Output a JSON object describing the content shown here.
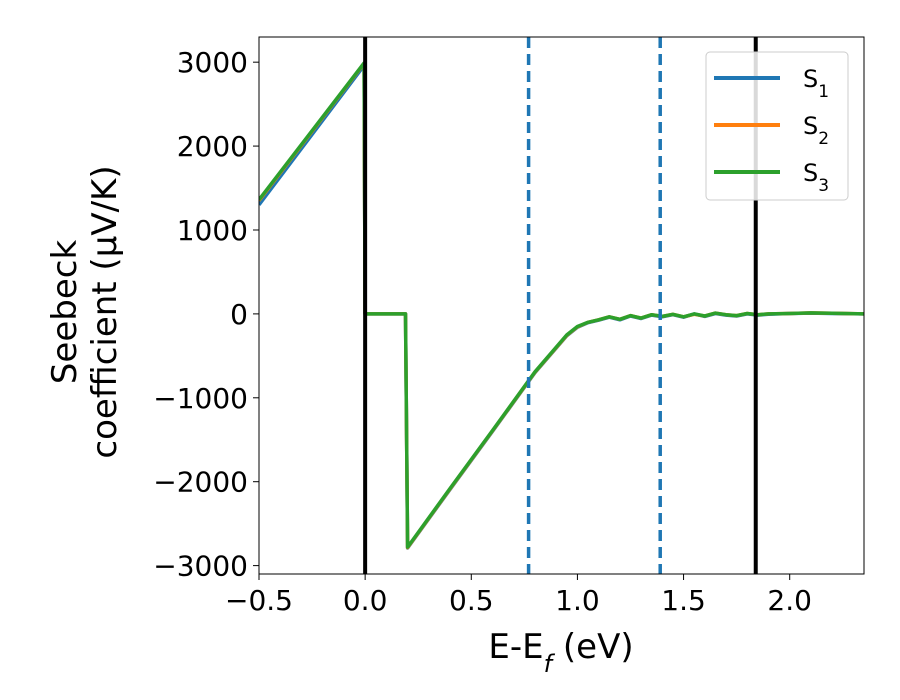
{
  "chart_data": {
    "type": "line",
    "title": "",
    "xlabel": {
      "main": "E-E",
      "sub": "f",
      "unit": " (eV)"
    },
    "ylabel": {
      "line1": "Seebeck",
      "line2": "coefficient  (μV/K)"
    },
    "xlim": [
      -0.5,
      2.35
    ],
    "ylim": [
      -3100,
      3300
    ],
    "xticks": [
      -0.5,
      0.0,
      0.5,
      1.0,
      1.5,
      2.0
    ],
    "xtick_labels": [
      "−0.5",
      "0.0",
      "0.5",
      "1.0",
      "1.5",
      "2.0"
    ],
    "yticks": [
      -3000,
      -2000,
      -1000,
      0,
      1000,
      2000,
      3000
    ],
    "ytick_labels": [
      "−3000",
      "−2000",
      "−1000",
      "0",
      "1000",
      "2000",
      "3000"
    ],
    "grid": false,
    "legend_position": "top-right",
    "vlines": [
      {
        "x": 0.0,
        "style": "solid",
        "color": "#000000"
      },
      {
        "x": 1.84,
        "style": "solid",
        "color": "#000000"
      },
      {
        "x": 0.77,
        "style": "dashed",
        "color": "#1f77b4"
      },
      {
        "x": 1.39,
        "style": "dashed",
        "color": "#1f77b4"
      }
    ],
    "series": [
      {
        "name": "S",
        "sub": "1",
        "color": "#1f77b4",
        "x": [
          -0.5,
          -0.005,
          0.0,
          0.19,
          0.2,
          0.4,
          0.6,
          0.8,
          0.95,
          1.0,
          1.05,
          1.1,
          1.15,
          1.2,
          1.25,
          1.3,
          1.35,
          1.4,
          1.45,
          1.5,
          1.55,
          1.6,
          1.65,
          1.7,
          1.75,
          1.8,
          1.85,
          1.9,
          2.0,
          2.1,
          2.2,
          2.35
        ],
        "y": [
          1300,
          2960,
          0,
          0,
          -2790,
          -2090,
          -1400,
          -700,
          -260,
          -160,
          -105,
          -75,
          -40,
          -70,
          -25,
          -55,
          -15,
          -35,
          -10,
          -40,
          0,
          -30,
          5,
          -15,
          -25,
          0,
          -15,
          -5,
          5,
          10,
          5,
          0
        ]
      },
      {
        "name": "S",
        "sub": "2",
        "color": "#ff7f0e",
        "x": [
          -0.5,
          -0.005,
          0.0,
          0.19,
          0.2,
          0.4,
          0.6,
          0.8,
          0.95,
          1.0,
          1.05,
          1.1,
          1.15,
          1.2,
          1.25,
          1.3,
          1.35,
          1.4,
          1.45,
          1.5,
          1.55,
          1.6,
          1.65,
          1.7,
          1.75,
          1.8,
          1.85,
          1.9,
          2.0,
          2.1,
          2.2,
          2.35
        ],
        "y": [
          1350,
          2985,
          0,
          0,
          -2785,
          -2085,
          -1395,
          -695,
          -255,
          -155,
          -100,
          -70,
          -35,
          -65,
          -20,
          -50,
          -10,
          -30,
          -5,
          -35,
          -5,
          -25,
          10,
          -10,
          -20,
          5,
          -10,
          0,
          5,
          12,
          8,
          0
        ]
      },
      {
        "name": "S",
        "sub": "3",
        "color": "#2ca02c",
        "x": [
          -0.5,
          -0.005,
          0.0,
          0.19,
          0.2,
          0.4,
          0.6,
          0.8,
          0.95,
          1.0,
          1.05,
          1.1,
          1.15,
          1.2,
          1.25,
          1.3,
          1.35,
          1.4,
          1.45,
          1.5,
          1.55,
          1.6,
          1.65,
          1.7,
          1.75,
          1.8,
          1.85,
          1.9,
          2.0,
          2.1,
          2.2,
          2.35
        ],
        "y": [
          1360,
          2990,
          0,
          0,
          -2780,
          -2080,
          -1390,
          -690,
          -250,
          -150,
          -100,
          -70,
          -35,
          -65,
          -20,
          -50,
          -10,
          -30,
          -5,
          -35,
          0,
          -25,
          10,
          -10,
          -20,
          5,
          -10,
          0,
          5,
          12,
          8,
          0
        ]
      }
    ]
  }
}
